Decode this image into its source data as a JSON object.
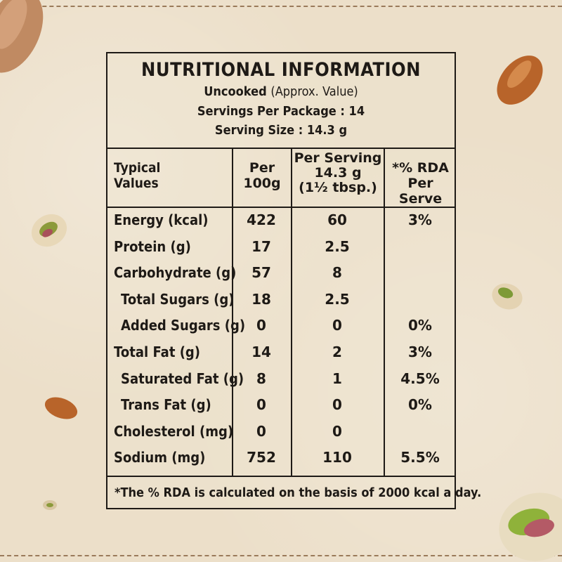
{
  "header": {
    "title": "NUTRITIONAL INFORMATION",
    "uncooked_bold": "Uncooked",
    "uncooked_note": "(Approx. Value)",
    "servings_per_package": "Servings Per Package : 14",
    "serving_size": "Serving Size : 14.3 g"
  },
  "columns": {
    "typical_line1": "Typical",
    "typical_line2": "Values",
    "per100_line1": "Per",
    "per100_line2": "100g",
    "serving_line1": "Per Serving",
    "serving_line2": "14.3 g",
    "serving_line3": "(1½ tbsp.)",
    "rda_line1": "*% RDA",
    "rda_line2": "Per Serve"
  },
  "rows": [
    {
      "name": "Energy (kcal)",
      "per100": "422",
      "serving": "60",
      "rda": "3%"
    },
    {
      "name": "Protein (g)",
      "per100": "17",
      "serving": "2.5",
      "rda": ""
    },
    {
      "name": "Carbohydrate (g)",
      "per100": "57",
      "serving": "8",
      "rda": ""
    },
    {
      "name": "Total Sugars (g)",
      "per100": "18",
      "serving": "2.5",
      "rda": ""
    },
    {
      "name": "Added Sugars (g)",
      "per100": "0",
      "serving": "0",
      "rda": "0%"
    },
    {
      "name": "Total Fat (g)",
      "per100": "14",
      "serving": "2",
      "rda": "3%"
    },
    {
      "name": "Saturated Fat (g)",
      "per100": "8",
      "serving": "1",
      "rda": "4.5%"
    },
    {
      "name": "Trans Fat (g)",
      "per100": "0",
      "serving": "0",
      "rda": "0%"
    },
    {
      "name": "Cholesterol (mg)",
      "per100": "0",
      "serving": "0",
      "rda": ""
    },
    {
      "name": "Sodium (mg)",
      "per100": "752",
      "serving": "110",
      "rda": "5.5%"
    }
  ],
  "footnote": "*The % RDA is calculated on the basis of 2000 kcal a day."
}
